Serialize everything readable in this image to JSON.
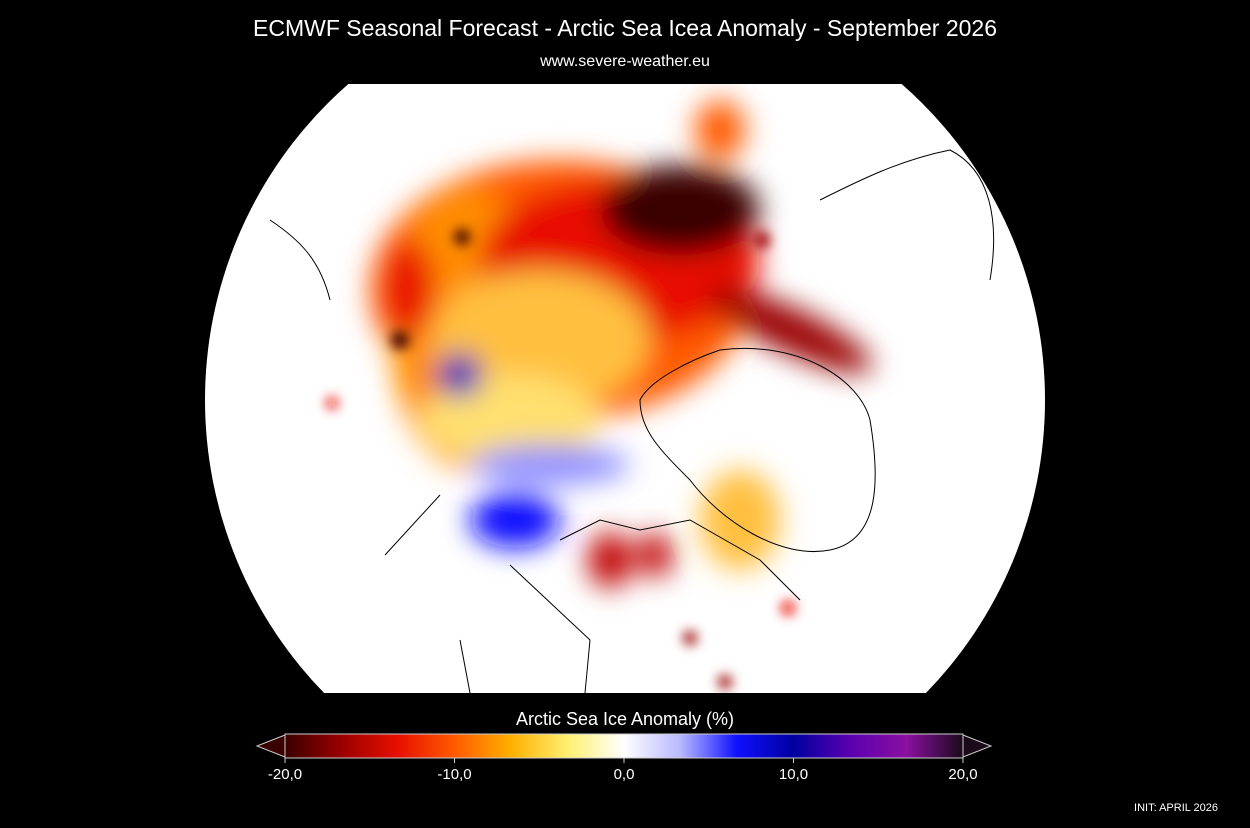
{
  "header": {
    "title": "ECMWF Seasonal Forecast - Arctic Sea Icea Anomaly - September 2026",
    "subtitle": "www.severe-weather.eu"
  },
  "colorbar": {
    "label": "Arctic Sea Ice Anomaly (%)",
    "range": [
      -20,
      20
    ],
    "ticks": [
      {
        "value": -20,
        "label": "-20,0"
      },
      {
        "value": -10,
        "label": "-10,0"
      },
      {
        "value": 0,
        "label": "0,0"
      },
      {
        "value": 10,
        "label": "10,0"
      },
      {
        "value": 20,
        "label": "20,0"
      }
    ],
    "colors": [
      "#3a0000",
      "#9a0000",
      "#e81000",
      "#ff5a00",
      "#ffb000",
      "#fff070",
      "#ffffff",
      "#b8b8ff",
      "#1010ff",
      "#0000a0",
      "#5a00b0",
      "#8a10a0",
      "#1a0a1a"
    ]
  },
  "footer": {
    "init": "INIT: APRIL 2026"
  }
}
